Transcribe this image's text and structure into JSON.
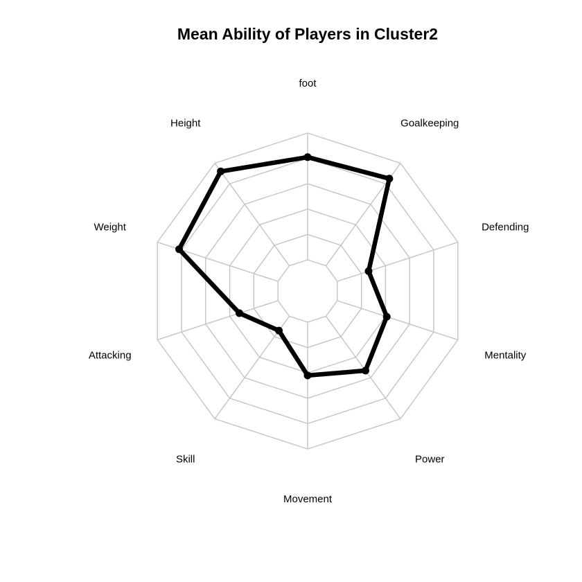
{
  "chart_data": {
    "type": "radar",
    "title": "Mean Ability of Players in Cluster2",
    "axes": [
      "foot",
      "Goalkeeping",
      "Defending",
      "Mentality",
      "Power",
      "Movement",
      "Skill",
      "Attacking",
      "Weight",
      "Height"
    ],
    "grid_levels": 5,
    "range": [
      0,
      1
    ],
    "series": [
      {
        "values": [
          0.81,
          0.85,
          0.26,
          0.41,
          0.53,
          0.42,
          0.14,
          0.32,
          0.82,
          0.92
        ]
      }
    ],
    "colors": {
      "series": "#000000",
      "grid": "#c4c4c4"
    },
    "legend": "none"
  }
}
